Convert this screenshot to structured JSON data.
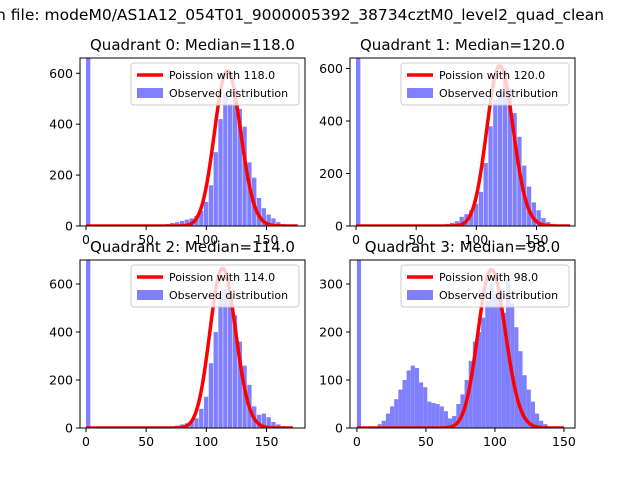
{
  "figure_title": "n file: modeM0/AS1A12_054T01_9000005392_38734cztM0_level2_quad_clean",
  "chart_data": [
    {
      "type": "bar",
      "title": "Quadrant 0: Median=118.0",
      "xlim": [
        -5,
        182
      ],
      "ylim": [
        0,
        660
      ],
      "xticks": [
        0,
        50,
        100,
        150
      ],
      "yticks": [
        0,
        200,
        400,
        600
      ],
      "legend_position": "top-right",
      "series": [
        {
          "name": "Poission with 118.0",
          "kind": "line",
          "color": "#ff0000",
          "mean": 118,
          "peak": 610,
          "x_range": [
            0,
            176
          ]
        },
        {
          "name": "Observed distribution",
          "kind": "histogram",
          "color": "#8080ff",
          "bin_width": 3.6,
          "bins": [
            {
              "x": 0,
              "v": 660
            },
            {
              "x": 50,
              "v": 2
            },
            {
              "x": 54,
              "v": 3
            },
            {
              "x": 58,
              "v": 5
            },
            {
              "x": 62,
              "v": 4
            },
            {
              "x": 66,
              "v": 8
            },
            {
              "x": 70,
              "v": 12
            },
            {
              "x": 74,
              "v": 15
            },
            {
              "x": 78,
              "v": 20
            },
            {
              "x": 82,
              "v": 25
            },
            {
              "x": 86,
              "v": 30
            },
            {
              "x": 90,
              "v": 40
            },
            {
              "x": 94,
              "v": 60
            },
            {
              "x": 98,
              "v": 95
            },
            {
              "x": 102,
              "v": 160
            },
            {
              "x": 106,
              "v": 290
            },
            {
              "x": 110,
              "v": 420
            },
            {
              "x": 114,
              "v": 520
            },
            {
              "x": 118,
              "v": 480
            },
            {
              "x": 122,
              "v": 540
            },
            {
              "x": 126,
              "v": 460
            },
            {
              "x": 130,
              "v": 390
            },
            {
              "x": 134,
              "v": 250
            },
            {
              "x": 138,
              "v": 190
            },
            {
              "x": 142,
              "v": 110
            },
            {
              "x": 146,
              "v": 70
            },
            {
              "x": 150,
              "v": 45
            },
            {
              "x": 154,
              "v": 30
            },
            {
              "x": 158,
              "v": 15
            },
            {
              "x": 162,
              "v": 8
            },
            {
              "x": 166,
              "v": 4
            }
          ]
        }
      ]
    },
    {
      "type": "bar",
      "title": "Quadrant 1: Median=120.0",
      "xlim": [
        -5,
        182
      ],
      "ylim": [
        0,
        640
      ],
      "xticks": [
        0,
        50,
        100,
        150
      ],
      "yticks": [
        0,
        200,
        400,
        600
      ],
      "legend_position": "top-right",
      "series": [
        {
          "name": "Poission with 120.0",
          "kind": "line",
          "color": "#ff0000",
          "mean": 120,
          "peak": 610,
          "x_range": [
            0,
            178
          ]
        },
        {
          "name": "Observed distribution",
          "kind": "histogram",
          "color": "#8080ff",
          "bin_width": 3.6,
          "bins": [
            {
              "x": 0,
              "v": 640
            },
            {
              "x": 66,
              "v": 3
            },
            {
              "x": 70,
              "v": 5
            },
            {
              "x": 74,
              "v": 8
            },
            {
              "x": 78,
              "v": 12
            },
            {
              "x": 82,
              "v": 18
            },
            {
              "x": 86,
              "v": 35
            },
            {
              "x": 90,
              "v": 45
            },
            {
              "x": 94,
              "v": 60
            },
            {
              "x": 98,
              "v": 85
            },
            {
              "x": 102,
              "v": 130
            },
            {
              "x": 106,
              "v": 240
            },
            {
              "x": 110,
              "v": 380
            },
            {
              "x": 114,
              "v": 480
            },
            {
              "x": 118,
              "v": 510
            },
            {
              "x": 122,
              "v": 600
            },
            {
              "x": 126,
              "v": 520
            },
            {
              "x": 130,
              "v": 430
            },
            {
              "x": 134,
              "v": 340
            },
            {
              "x": 138,
              "v": 230
            },
            {
              "x": 142,
              "v": 150
            },
            {
              "x": 146,
              "v": 90
            },
            {
              "x": 150,
              "v": 60
            },
            {
              "x": 154,
              "v": 30
            },
            {
              "x": 158,
              "v": 15
            },
            {
              "x": 162,
              "v": 8
            }
          ]
        }
      ]
    },
    {
      "type": "bar",
      "title": "Quadrant 2: Median=114.0",
      "xlim": [
        -5,
        182
      ],
      "ylim": [
        0,
        700
      ],
      "xticks": [
        0,
        50,
        100,
        150
      ],
      "yticks": [
        0,
        200,
        400,
        600
      ],
      "legend_position": "top-right",
      "series": [
        {
          "name": "Poission with 114.0",
          "kind": "line",
          "color": "#ff0000",
          "mean": 114,
          "peak": 665,
          "x_range": [
            0,
            172
          ]
        },
        {
          "name": "Observed distribution",
          "kind": "histogram",
          "color": "#8080ff",
          "bin_width": 3.6,
          "bins": [
            {
              "x": 0,
              "v": 700
            },
            {
              "x": 66,
              "v": 2
            },
            {
              "x": 70,
              "v": 5
            },
            {
              "x": 74,
              "v": 10
            },
            {
              "x": 78,
              "v": 15
            },
            {
              "x": 82,
              "v": 20
            },
            {
              "x": 86,
              "v": 30
            },
            {
              "x": 90,
              "v": 40
            },
            {
              "x": 94,
              "v": 80
            },
            {
              "x": 98,
              "v": 130
            },
            {
              "x": 102,
              "v": 270
            },
            {
              "x": 106,
              "v": 400
            },
            {
              "x": 110,
              "v": 560
            },
            {
              "x": 114,
              "v": 580
            },
            {
              "x": 118,
              "v": 560
            },
            {
              "x": 122,
              "v": 470
            },
            {
              "x": 126,
              "v": 360
            },
            {
              "x": 130,
              "v": 260
            },
            {
              "x": 134,
              "v": 180
            },
            {
              "x": 138,
              "v": 90
            },
            {
              "x": 142,
              "v": 55
            },
            {
              "x": 146,
              "v": 60
            },
            {
              "x": 150,
              "v": 45
            },
            {
              "x": 154,
              "v": 25
            },
            {
              "x": 158,
              "v": 15
            },
            {
              "x": 162,
              "v": 8
            }
          ]
        }
      ]
    },
    {
      "type": "bar",
      "title": "Quadrant 3: Median=98.0",
      "xlim": [
        -5,
        158
      ],
      "ylim": [
        0,
        350
      ],
      "xticks": [
        0,
        50,
        100,
        150
      ],
      "yticks": [
        0,
        100,
        200,
        300
      ],
      "legend_position": "top-right",
      "series": [
        {
          "name": "Poission with 98.0",
          "kind": "line",
          "color": "#ff0000",
          "mean": 98,
          "peak": 330,
          "x_range": [
            0,
            150
          ]
        },
        {
          "name": "Observed distribution",
          "kind": "histogram",
          "color": "#8080ff",
          "bin_width": 3.0,
          "bins": [
            {
              "x": 0,
              "v": 350
            },
            {
              "x": 12,
              "v": 3
            },
            {
              "x": 15,
              "v": 8
            },
            {
              "x": 18,
              "v": 15
            },
            {
              "x": 21,
              "v": 30
            },
            {
              "x": 24,
              "v": 45
            },
            {
              "x": 27,
              "v": 60
            },
            {
              "x": 30,
              "v": 80
            },
            {
              "x": 33,
              "v": 100
            },
            {
              "x": 36,
              "v": 120
            },
            {
              "x": 39,
              "v": 130
            },
            {
              "x": 42,
              "v": 125
            },
            {
              "x": 45,
              "v": 95
            },
            {
              "x": 48,
              "v": 85
            },
            {
              "x": 51,
              "v": 55
            },
            {
              "x": 54,
              "v": 52
            },
            {
              "x": 57,
              "v": 50
            },
            {
              "x": 60,
              "v": 45
            },
            {
              "x": 63,
              "v": 35
            },
            {
              "x": 66,
              "v": 20
            },
            {
              "x": 69,
              "v": 25
            },
            {
              "x": 72,
              "v": 50
            },
            {
              "x": 75,
              "v": 70
            },
            {
              "x": 78,
              "v": 100
            },
            {
              "x": 81,
              "v": 140
            },
            {
              "x": 84,
              "v": 180
            },
            {
              "x": 87,
              "v": 200
            },
            {
              "x": 90,
              "v": 230
            },
            {
              "x": 93,
              "v": 265
            },
            {
              "x": 96,
              "v": 300
            },
            {
              "x": 99,
              "v": 280
            },
            {
              "x": 102,
              "v": 290
            },
            {
              "x": 105,
              "v": 240
            },
            {
              "x": 108,
              "v": 310
            },
            {
              "x": 111,
              "v": 260
            },
            {
              "x": 114,
              "v": 210
            },
            {
              "x": 117,
              "v": 160
            },
            {
              "x": 120,
              "v": 110
            },
            {
              "x": 123,
              "v": 80
            },
            {
              "x": 126,
              "v": 55
            },
            {
              "x": 129,
              "v": 30
            },
            {
              "x": 132,
              "v": 15
            },
            {
              "x": 135,
              "v": 8
            }
          ]
        }
      ]
    }
  ]
}
